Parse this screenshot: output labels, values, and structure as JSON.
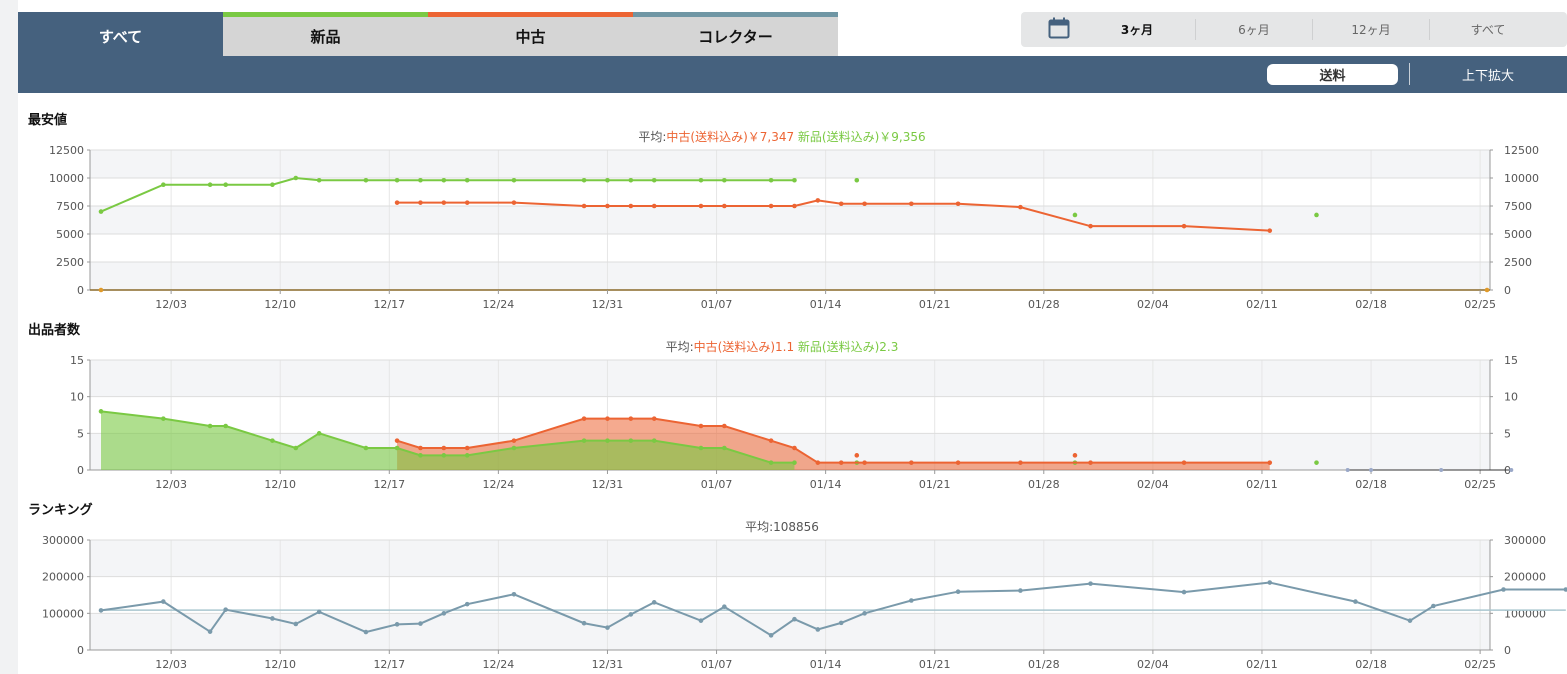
{
  "tabs": [
    {
      "label": "すべて",
      "color": "#45617e",
      "active": true
    },
    {
      "label": "新品",
      "color": "#7ac943",
      "active": false
    },
    {
      "label": "中古",
      "color": "#ec6433",
      "active": false
    },
    {
      "label": "コレクター",
      "color": "#6f96a4",
      "active": false
    }
  ],
  "range": {
    "options": [
      "3ヶ月",
      "6ヶ月",
      "12ヶ月",
      "すべて"
    ],
    "selected": "3ヶ月"
  },
  "toolbar": {
    "postage_label": "送料",
    "zoom_label": "上下拡大"
  },
  "colors": {
    "new": "#7ac943",
    "used": "#ec6433",
    "ranking": "#7a9aab",
    "nav": "#45617e"
  },
  "chart_data": [
    {
      "type": "line",
      "title": "最安値",
      "subtitle_prefix": "平均:",
      "subtitle_parts": [
        "中古(送料込み)￥7,347",
        "新品(送料込み)￥9,356"
      ],
      "x_ticks": [
        "12/03",
        "12/10",
        "12/17",
        "12/24",
        "12/31",
        "01/07",
        "01/14",
        "01/21",
        "01/28",
        "02/04",
        "02/11",
        "02/18",
        "02/25"
      ],
      "ylim": [
        0,
        12500
      ],
      "y_ticks": [
        "0",
        "2500",
        "5000",
        "7500",
        "10000",
        "12500"
      ],
      "series": [
        {
          "key": "new",
          "points": [
            [
              0,
              7000
            ],
            [
              4,
              9400
            ],
            [
              7,
              9400
            ],
            [
              8,
              9400
            ],
            [
              11,
              9400
            ],
            [
              12.5,
              10000
            ],
            [
              14,
              9800
            ],
            [
              17,
              9800
            ],
            [
              19,
              9800
            ],
            [
              20.5,
              9800
            ],
            [
              22,
              9800
            ],
            [
              23.5,
              9800
            ],
            [
              26.5,
              9800
            ],
            [
              31,
              9800
            ],
            [
              32.5,
              9800
            ],
            [
              34,
              9800
            ],
            [
              35.5,
              9800
            ],
            [
              38.5,
              9800
            ],
            [
              40,
              9800
            ],
            [
              43,
              9800
            ],
            [
              44.5,
              9800
            ]
          ],
          "isolated": [
            [
              48.5,
              9800
            ],
            [
              62.5,
              6700
            ],
            [
              78,
              6700
            ]
          ]
        },
        {
          "key": "used",
          "points": [
            [
              19,
              7800
            ],
            [
              20.5,
              7800
            ],
            [
              22,
              7800
            ],
            [
              23.5,
              7800
            ],
            [
              26.5,
              7800
            ],
            [
              31,
              7500
            ],
            [
              32.5,
              7500
            ],
            [
              34,
              7500
            ],
            [
              35.5,
              7500
            ],
            [
              38.5,
              7500
            ],
            [
              40,
              7500
            ],
            [
              43,
              7500
            ],
            [
              44.5,
              7500
            ],
            [
              46,
              8000
            ],
            [
              47.5,
              7700
            ],
            [
              49,
              7700
            ],
            [
              52,
              7700
            ],
            [
              55,
              7700
            ],
            [
              59,
              7400
            ],
            [
              63.5,
              5700
            ],
            [
              69.5,
              5700
            ],
            [
              75,
              5300
            ]
          ]
        }
      ]
    },
    {
      "type": "area",
      "title": "出品者数",
      "subtitle_prefix": "平均:",
      "subtitle_parts": [
        "中古(送料込み)1.1",
        "新品(送料込み)2.3"
      ],
      "x_ticks": [
        "12/03",
        "12/10",
        "12/17",
        "12/24",
        "12/31",
        "01/07",
        "01/14",
        "01/21",
        "01/28",
        "02/04",
        "02/11",
        "02/18",
        "02/25"
      ],
      "ylim": [
        0,
        15
      ],
      "y_ticks": [
        "0",
        "5",
        "10",
        "15"
      ],
      "series": [
        {
          "key": "new",
          "points": [
            [
              0,
              8
            ],
            [
              4,
              7
            ],
            [
              7,
              6
            ],
            [
              8,
              6
            ],
            [
              11,
              4
            ],
            [
              12.5,
              3
            ],
            [
              14,
              5
            ],
            [
              17,
              3
            ],
            [
              19,
              3
            ],
            [
              20.5,
              2
            ],
            [
              22,
              2
            ],
            [
              23.5,
              2
            ],
            [
              26.5,
              3
            ],
            [
              31,
              4
            ],
            [
              32.5,
              4
            ],
            [
              34,
              4
            ],
            [
              35.5,
              4
            ],
            [
              38.5,
              3
            ],
            [
              40,
              3
            ],
            [
              43,
              1
            ],
            [
              44.5,
              1
            ]
          ],
          "isolated": [
            [
              48.5,
              1
            ],
            [
              62.5,
              1
            ],
            [
              78,
              1
            ]
          ]
        },
        {
          "key": "used",
          "points": [
            [
              19,
              4
            ],
            [
              20.5,
              3
            ],
            [
              22,
              3
            ],
            [
              23.5,
              3
            ],
            [
              26.5,
              4
            ],
            [
              31,
              7
            ],
            [
              32.5,
              7
            ],
            [
              34,
              7
            ],
            [
              35.5,
              7
            ],
            [
              38.5,
              6
            ],
            [
              40,
              6
            ],
            [
              43,
              4
            ],
            [
              44.5,
              3
            ],
            [
              46,
              1
            ],
            [
              47.5,
              1
            ],
            [
              49,
              1
            ],
            [
              52,
              1
            ],
            [
              55,
              1
            ],
            [
              59,
              1
            ],
            [
              63.5,
              1
            ],
            [
              69.5,
              1
            ],
            [
              75,
              1
            ]
          ],
          "isolated": [
            [
              48.5,
              2
            ],
            [
              62.5,
              2
            ]
          ]
        },
        {
          "key": "collector",
          "points": [
            [
              80,
              0
            ],
            [
              81.5,
              0
            ],
            [
              86,
              0
            ],
            [
              90.5,
              0
            ]
          ]
        }
      ]
    },
    {
      "type": "line",
      "title": "ランキング",
      "subtitle_prefix": "平均:",
      "subtitle_parts": [
        "108856"
      ],
      "x_ticks": [
        "12/03",
        "12/10",
        "12/17",
        "12/24",
        "12/31",
        "01/07",
        "01/14",
        "01/21",
        "01/28",
        "02/04",
        "02/11",
        "02/18",
        "02/25"
      ],
      "ylim": [
        0,
        300000
      ],
      "y_ticks": [
        "0",
        "100000",
        "200000",
        "300000"
      ],
      "average": 108856,
      "series": [
        {
          "key": "ranking",
          "points": [
            [
              0,
              108000
            ],
            [
              4,
              132000
            ],
            [
              7,
              50000
            ],
            [
              8,
              110000
            ],
            [
              11,
              86000
            ],
            [
              12.5,
              71000
            ],
            [
              14,
              104000
            ],
            [
              17,
              49000
            ],
            [
              19,
              70000
            ],
            [
              20.5,
              72000
            ],
            [
              22,
              100000
            ],
            [
              23.5,
              125000
            ],
            [
              26.5,
              152000
            ],
            [
              31,
              73000
            ],
            [
              32.5,
              61000
            ],
            [
              34,
              97000
            ],
            [
              35.5,
              130000
            ],
            [
              38.5,
              80000
            ],
            [
              40,
              118000
            ],
            [
              43,
              40000
            ],
            [
              44.5,
              84000
            ],
            [
              46,
              56000
            ],
            [
              47.5,
              74000
            ],
            [
              49,
              100000
            ],
            [
              52,
              135000
            ],
            [
              55,
              159000
            ],
            [
              59,
              162000
            ],
            [
              63.5,
              181000
            ],
            [
              69.5,
              158000
            ],
            [
              75,
              184000
            ],
            [
              80.5,
              132000
            ],
            [
              84,
              80000
            ],
            [
              85.5,
              120000
            ],
            [
              90,
              165000
            ],
            [
              94,
              165000
            ]
          ]
        }
      ]
    }
  ]
}
